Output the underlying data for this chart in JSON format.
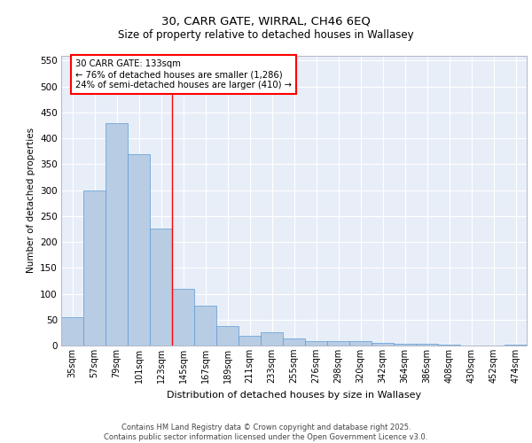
{
  "title1": "30, CARR GATE, WIRRAL, CH46 6EQ",
  "title2": "Size of property relative to detached houses in Wallasey",
  "xlabel": "Distribution of detached houses by size in Wallasey",
  "ylabel": "Number of detached properties",
  "categories": [
    "35sqm",
    "57sqm",
    "79sqm",
    "101sqm",
    "123sqm",
    "145sqm",
    "167sqm",
    "189sqm",
    "211sqm",
    "233sqm",
    "255sqm",
    "276sqm",
    "298sqm",
    "320sqm",
    "342sqm",
    "364sqm",
    "386sqm",
    "408sqm",
    "430sqm",
    "452sqm",
    "474sqm"
  ],
  "values": [
    55,
    300,
    430,
    370,
    225,
    110,
    77,
    38,
    18,
    25,
    13,
    9,
    9,
    8,
    5,
    4,
    4,
    2,
    0,
    0,
    2
  ],
  "bar_color": "#b8cce4",
  "bar_edge_color": "#5b9bd5",
  "annotation_title": "30 CARR GATE: 133sqm",
  "annotation_line1": "← 76% of detached houses are smaller (1,286)",
  "annotation_line2": "24% of semi-detached houses are larger (410) →",
  "ylim": [
    0,
    560
  ],
  "yticks": [
    0,
    50,
    100,
    150,
    200,
    250,
    300,
    350,
    400,
    450,
    500,
    550
  ],
  "background_color": "#e8eef8",
  "grid_color": "#ffffff",
  "footer1": "Contains HM Land Registry data © Crown copyright and database right 2025.",
  "footer2": "Contains public sector information licensed under the Open Government Licence v3.0."
}
